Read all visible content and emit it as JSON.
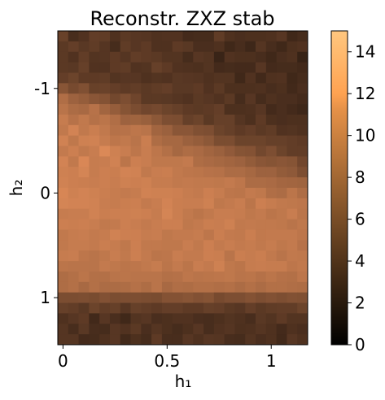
{
  "chart_data": {
    "type": "heatmap",
    "title": "Reconstr. ZXZ stab",
    "xlabel": "h₁",
    "ylabel": "h₂",
    "x_ticks": [
      {
        "value": 0,
        "label": "0"
      },
      {
        "value": 0.5,
        "label": "0.5"
      },
      {
        "value": 1,
        "label": "1"
      }
    ],
    "y_ticks": [
      {
        "value": -1,
        "label": "-1"
      },
      {
        "value": 0,
        "label": "0"
      },
      {
        "value": 1,
        "label": "1"
      }
    ],
    "xlim": [
      -0.025,
      1.175
    ],
    "ylim": [
      1.45,
      -1.55
    ],
    "colorbar": {
      "range": [
        0,
        15
      ],
      "ticks": [
        0,
        2,
        4,
        6,
        8,
        10,
        12,
        14
      ],
      "colormap": "copper"
    },
    "grid": {
      "cols": 24,
      "rows": 30,
      "x_start": -0.025,
      "x_step": 0.05,
      "y_start": -1.55,
      "y_step": 0.1
    },
    "values": [
      [
        4.9,
        3.4,
        3.8,
        4.6,
        4.5,
        3.7,
        4.3,
        4.1,
        4.0,
        3.7,
        3.8,
        3.8,
        3.2,
        3.3,
        3.3,
        4.5,
        3.7,
        3.5,
        3.6,
        3.6,
        3.7,
        4.1,
        3.0,
        3.3
      ],
      [
        4.3,
        4.7,
        4.2,
        4.5,
        4.0,
        3.3,
        4.5,
        4.1,
        4.4,
        3.7,
        3.7,
        4.4,
        4.2,
        3.5,
        3.5,
        3.7,
        3.0,
        3.4,
        2.9,
        4.0,
        3.4,
        3.0,
        3.6,
        3.8
      ],
      [
        4.3,
        3.8,
        4.6,
        3.9,
        4.0,
        4.4,
        4.0,
        4.6,
        4.4,
        4.3,
        3.9,
        3.9,
        3.3,
        4.1,
        3.9,
        2.7,
        3.8,
        3.6,
        3.6,
        3.4,
        3.0,
        3.5,
        3.7,
        2.6
      ],
      [
        4.3,
        4.2,
        4.8,
        3.8,
        3.8,
        4.4,
        4.5,
        3.8,
        3.9,
        4.8,
        4.4,
        3.8,
        3.7,
        3.6,
        3.9,
        3.2,
        3.3,
        3.2,
        3.2,
        4.1,
        3.2,
        3.3,
        3.3,
        3.1
      ],
      [
        4.7,
        5.1,
        4.4,
        4.4,
        4.5,
        3.9,
        4.1,
        4.1,
        3.7,
        3.9,
        3.8,
        4.2,
        4.1,
        4.0,
        3.7,
        3.9,
        3.9,
        3.0,
        3.8,
        3.1,
        3.7,
        3.8,
        3.0,
        3.3
      ],
      [
        6.4,
        5.6,
        6.0,
        4.9,
        5.0,
        4.7,
        4.4,
        4.6,
        4.3,
        4.5,
        4.7,
        4.2,
        4.2,
        4.4,
        3.8,
        4.3,
        3.6,
        3.6,
        3.6,
        3.7,
        3.4,
        3.6,
        3.1,
        3.5
      ],
      [
        8.3,
        7.4,
        7.0,
        6.5,
        6.2,
        5.4,
        5.9,
        5.2,
        4.3,
        4.3,
        4.2,
        4.0,
        3.8,
        4.3,
        4.1,
        3.8,
        4.3,
        3.3,
        4.1,
        3.3,
        3.7,
        3.5,
        3.5,
        3.2
      ],
      [
        8.7,
        8.1,
        7.9,
        8.6,
        7.6,
        7.0,
        6.3,
        5.8,
        5.3,
        5.5,
        5.1,
        4.8,
        4.4,
        4.3,
        4.4,
        4.7,
        3.6,
        3.6,
        3.7,
        4.1,
        3.2,
        3.5,
        3.2,
        2.9
      ],
      [
        9.3,
        8.6,
        9.1,
        8.5,
        8.8,
        8.3,
        7.4,
        7.5,
        7.2,
        6.6,
        5.9,
        5.8,
        4.8,
        5.1,
        4.3,
        4.8,
        4.8,
        4.0,
        3.6,
        4.4,
        3.6,
        3.5,
        3.6,
        3.6
      ],
      [
        9.1,
        9.9,
        9.1,
        9.5,
        9.1,
        8.5,
        8.6,
        8.9,
        8.7,
        7.6,
        7.3,
        6.5,
        6.5,
        6.0,
        5.9,
        5.1,
        4.8,
        4.4,
        4.7,
        4.3,
        4.5,
        3.8,
        3.9,
        3.7
      ],
      [
        9.8,
        9.0,
        9.7,
        9.8,
        9.3,
        8.9,
        9.1,
        8.7,
        9.5,
        8.2,
        7.8,
        7.8,
        7.3,
        7.0,
        6.6,
        5.8,
        5.8,
        5.1,
        5.1,
        5.1,
        4.8,
        4.8,
        4.6,
        4.4
      ],
      [
        9.2,
        9.6,
        9.1,
        9.4,
        10.3,
        9.7,
        9.4,
        8.9,
        9.4,
        8.9,
        8.4,
        7.8,
        8.2,
        8.0,
        7.6,
        7.3,
        6.8,
        6.3,
        6.2,
        5.4,
        5.9,
        5.1,
        4.6,
        4.6
      ],
      [
        9.9,
        9.1,
        10.2,
        9.3,
        9.4,
        9.8,
        8.8,
        9.6,
        9.4,
        9.0,
        9.0,
        9.0,
        9.2,
        8.2,
        8.0,
        7.8,
        7.6,
        7.4,
        6.9,
        6.5,
        6.3,
        6.5,
        6.3,
        5.3
      ],
      [
        9.7,
        9.6,
        10.0,
        9.3,
        9.6,
        9.5,
        9.9,
        9.8,
        9.1,
        9.4,
        9.5,
        9.1,
        8.9,
        8.8,
        8.6,
        8.5,
        8.1,
        8.1,
        7.8,
        7.4,
        7.4,
        6.9,
        6.7,
        5.9
      ],
      [
        9.8,
        9.6,
        9.5,
        9.4,
        9.6,
        9.4,
        9.7,
        9.6,
        9.7,
        9.3,
        9.3,
        9.1,
        9.2,
        9.1,
        9.1,
        9.0,
        9.2,
        8.9,
        8.1,
        8.1,
        8.0,
        7.7,
        7.6,
        7.5
      ],
      [
        10.1,
        9.7,
        9.9,
        9.7,
        9.5,
        9.3,
        9.2,
        9.3,
        9.8,
        9.7,
        9.7,
        9.6,
        9.3,
        9.2,
        9.6,
        9.3,
        8.9,
        8.8,
        9.2,
        9.0,
        8.3,
        8.1,
        8.8,
        8.2
      ],
      [
        10.0,
        9.9,
        9.9,
        9.8,
        9.4,
        9.3,
        9.5,
        9.6,
        9.2,
        9.4,
        9.9,
        9.5,
        9.4,
        9.4,
        9.7,
        9.0,
        9.2,
        9.4,
        8.8,
        9.6,
        9.3,
        9.1,
        9.0,
        8.9
      ],
      [
        9.3,
        9.4,
        9.4,
        9.8,
        9.5,
        9.6,
        9.6,
        9.7,
        9.6,
        9.3,
        10.0,
        9.5,
        9.1,
        8.8,
        9.1,
        9.4,
        9.4,
        9.3,
        9.0,
        9.2,
        8.8,
        9.0,
        9.4,
        8.8
      ],
      [
        9.6,
        9.5,
        9.6,
        9.4,
        9.1,
        9.2,
        9.6,
        9.4,
        9.2,
        9.4,
        9.6,
        9.6,
        9.0,
        9.2,
        9.5,
        9.4,
        9.7,
        9.1,
        9.2,
        9.1,
        9.1,
        9.0,
        8.7,
        9.0
      ],
      [
        9.1,
        9.3,
        9.4,
        9.2,
        9.3,
        9.8,
        9.6,
        9.6,
        9.3,
        9.4,
        9.0,
        9.2,
        9.2,
        9.3,
        8.9,
        9.5,
        9.2,
        9.1,
        9.5,
        9.1,
        9.2,
        9.2,
        9.2,
        8.9
      ],
      [
        9.1,
        9.3,
        9.3,
        9.2,
        9.5,
        9.3,
        9.0,
        9.6,
        9.1,
        9.1,
        9.0,
        9.0,
        9.4,
        9.1,
        9.6,
        9.2,
        9.4,
        9.2,
        9.3,
        9.1,
        9.3,
        9.0,
        9.2,
        8.6
      ],
      [
        9.3,
        9.4,
        8.9,
        8.7,
        9.0,
        9.4,
        9.1,
        9.6,
        9.2,
        8.8,
        8.9,
        9.4,
        9.2,
        9.2,
        9.6,
        9.5,
        8.7,
        9.5,
        9.3,
        9.5,
        9.1,
        8.7,
        9.1,
        9.0
      ],
      [
        8.8,
        8.7,
        8.7,
        8.7,
        9.2,
        9.0,
        8.8,
        8.9,
        9.1,
        9.3,
        8.8,
        9.2,
        8.8,
        9.4,
        9.2,
        9.7,
        9.0,
        8.8,
        9.3,
        9.4,
        9.3,
        9.3,
        8.9,
        9.1
      ],
      [
        8.2,
        8.4,
        8.8,
        8.4,
        8.4,
        8.7,
        8.8,
        8.7,
        8.7,
        8.7,
        8.4,
        8.5,
        8.9,
        8.7,
        8.8,
        8.9,
        9.0,
        8.7,
        8.8,
        8.5,
        8.8,
        8.5,
        8.4,
        8.9
      ],
      [
        8.2,
        8.4,
        7.9,
        8.4,
        8.1,
        8.1,
        8.2,
        8.5,
        8.2,
        8.7,
        7.9,
        8.3,
        8.2,
        8.4,
        8.4,
        8.3,
        8.4,
        8.1,
        8.4,
        8.1,
        8.4,
        8.4,
        8.3,
        8.2
      ],
      [
        5.8,
        5.8,
        5.9,
        5.7,
        6.1,
        5.8,
        5.9,
        5.9,
        5.8,
        5.7,
        6.2,
        6.2,
        6.4,
        6.1,
        6.3,
        5.6,
        5.9,
        5.9,
        6.2,
        5.9,
        6.1,
        5.9,
        6.1,
        6.0
      ],
      [
        4.8,
        4.6,
        4.2,
        5.1,
        4.6,
        4.8,
        4.1,
        4.8,
        4.6,
        4.4,
        4.7,
        4.7,
        4.4,
        4.4,
        4.8,
        4.7,
        4.3,
        4.1,
        4.7,
        4.3,
        4.5,
        4.6,
        4.6,
        5.1
      ],
      [
        3.7,
        4.1,
        4.4,
        3.1,
        4.1,
        3.5,
        3.0,
        3.9,
        4.1,
        3.5,
        3.6,
        3.8,
        3.8,
        3.5,
        3.4,
        3.6,
        3.9,
        3.7,
        3.4,
        4.2,
        3.9,
        4.4,
        3.9,
        3.9
      ],
      [
        4.0,
        3.4,
        4.2,
        3.4,
        3.3,
        4.1,
        3.8,
        4.3,
        3.5,
        4.0,
        3.6,
        3.3,
        3.6,
        4.1,
        3.4,
        3.8,
        4.0,
        3.6,
        3.7,
        4.0,
        3.7,
        3.2,
        3.7,
        3.5
      ],
      [
        4.0,
        4.0,
        3.2,
        3.3,
        3.7,
        4.1,
        3.1,
        3.6,
        3.3,
        4.4,
        3.4,
        3.4,
        4.1,
        3.7,
        4.1,
        4.0,
        3.4,
        3.3,
        3.9,
        3.5,
        3.7,
        3.1,
        4.1,
        3.7
      ]
    ]
  }
}
